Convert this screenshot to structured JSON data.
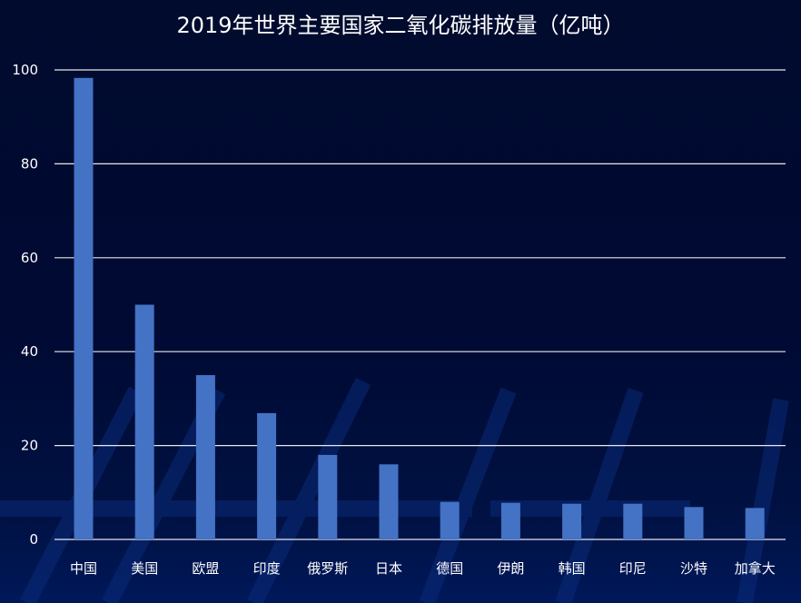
{
  "chart_data": {
    "type": "bar",
    "title": "2019年世界主要国家二氧化碳排放量（亿吨）",
    "xlabel": "",
    "ylabel": "",
    "categories": [
      "中国",
      "美国",
      "欧盟",
      "印度",
      "俄罗斯",
      "日本",
      "德国",
      "伊朗",
      "韩国",
      "印尼",
      "沙特",
      "加拿大"
    ],
    "values": [
      98.3,
      50,
      35,
      26.9,
      18,
      16,
      8,
      7.8,
      7.6,
      7.6,
      6.9,
      6.7
    ],
    "ylim": [
      0,
      100
    ],
    "yticks": [
      "0",
      "20",
      "40",
      "60",
      "80",
      "100"
    ],
    "grid": true,
    "bar_color": "#4472c4",
    "gridline_color": "#ffffff",
    "text_color": "#ffffff",
    "background_color": "#000b2e"
  }
}
